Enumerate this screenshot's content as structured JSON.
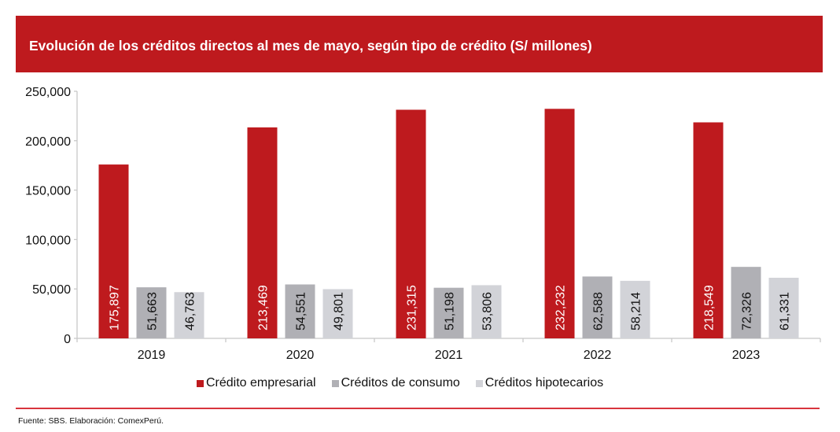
{
  "header": {
    "title": "Evolución de los créditos directos al mes de mayo, según tipo de crédito (S/ millones)"
  },
  "colors": {
    "banner": "#be1a1e",
    "empresarial": "#be1a1e",
    "consumo": "#b0b0b5",
    "hipotecarios": "#d2d3d8",
    "divider": "#d8353d"
  },
  "chart_data": {
    "type": "bar",
    "title": "Evolución de los créditos directos al mes de mayo, según tipo de crédito (S/ millones)",
    "xlabel": "",
    "ylabel": "",
    "categories": [
      "2019",
      "2020",
      "2021",
      "2022",
      "2023"
    ],
    "series": [
      {
        "name": "Crédito empresarial",
        "color": "#be1a1e",
        "label_color": "#ffffff",
        "values": [
          175897,
          213469,
          231315,
          232232,
          218549
        ],
        "labels": [
          "175,897",
          "213,469",
          "231,315",
          "232,232",
          "218,549"
        ]
      },
      {
        "name": "Créditos de consumo",
        "color": "#b0b0b5",
        "label_color": "#111111",
        "values": [
          51663,
          54551,
          51198,
          62588,
          72326
        ],
        "labels": [
          "51,663",
          "54,551",
          "51,198",
          "62,588",
          "72,326"
        ]
      },
      {
        "name": "Créditos hipotecarios",
        "color": "#d2d3d8",
        "label_color": "#111111",
        "values": [
          46763,
          49801,
          53806,
          58214,
          61331
        ],
        "labels": [
          "46,763",
          "49,801",
          "53,806",
          "58,214",
          "61,331"
        ]
      }
    ],
    "ylim": [
      0,
      250000
    ],
    "yticks": [
      0,
      50000,
      100000,
      150000,
      200000,
      250000
    ],
    "ytick_labels": [
      "0",
      "50,000",
      "100,000",
      "150,000",
      "200,000",
      "250,000"
    ],
    "grid": false,
    "legend_position": "bottom-center",
    "data_labels": "vertical-inside-bar"
  },
  "legend": {
    "items": [
      {
        "label": "Crédito empresarial"
      },
      {
        "label": "Créditos de consumo"
      },
      {
        "label": "Créditos hipotecarios"
      }
    ]
  },
  "footer": {
    "source": "Fuente: SBS. Elaboración: ComexPerú."
  }
}
